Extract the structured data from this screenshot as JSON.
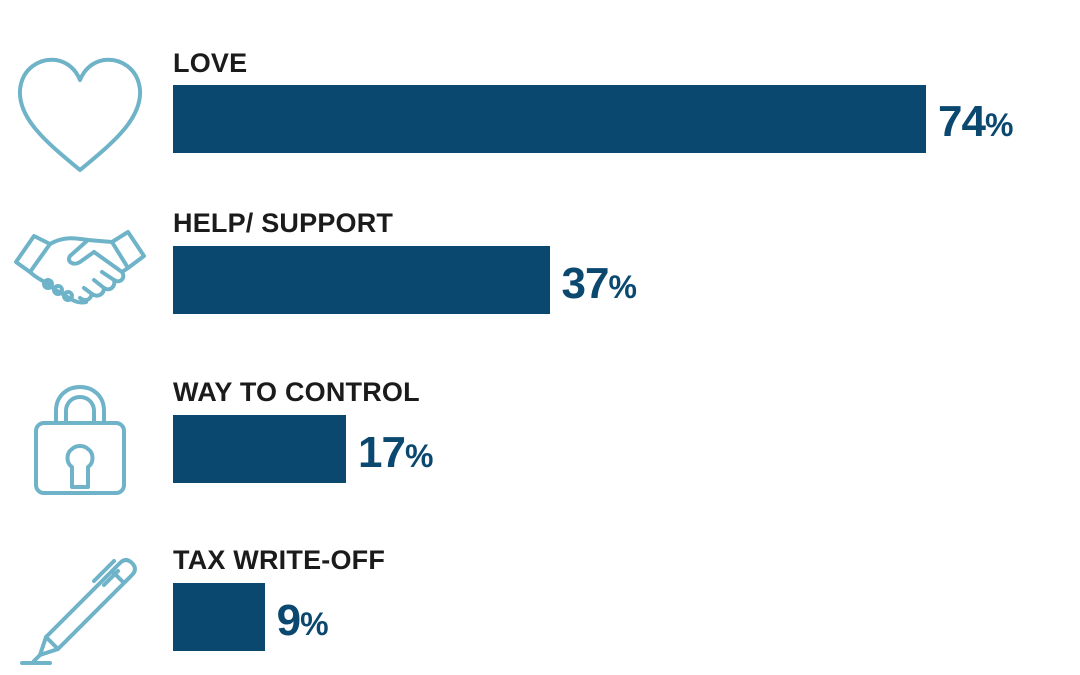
{
  "chart_data": {
    "type": "bar",
    "orientation": "horizontal",
    "categories": [
      "LOVE",
      "HELP/ SUPPORT",
      "WAY TO CONTROL",
      "TAX WRITE-OFF"
    ],
    "values": [
      74,
      37,
      17,
      9
    ],
    "value_labels": [
      "74",
      "37",
      "17",
      "9"
    ],
    "unit": "%",
    "icons": [
      "heart-icon",
      "handshake-icon",
      "padlock-icon",
      "pen-icon"
    ],
    "xlim": [
      0,
      100
    ],
    "grid": false,
    "legend": "none"
  },
  "colors": {
    "bar": "#0b4870",
    "value_text": "#0b4870",
    "icon": "#6fb3c9"
  }
}
